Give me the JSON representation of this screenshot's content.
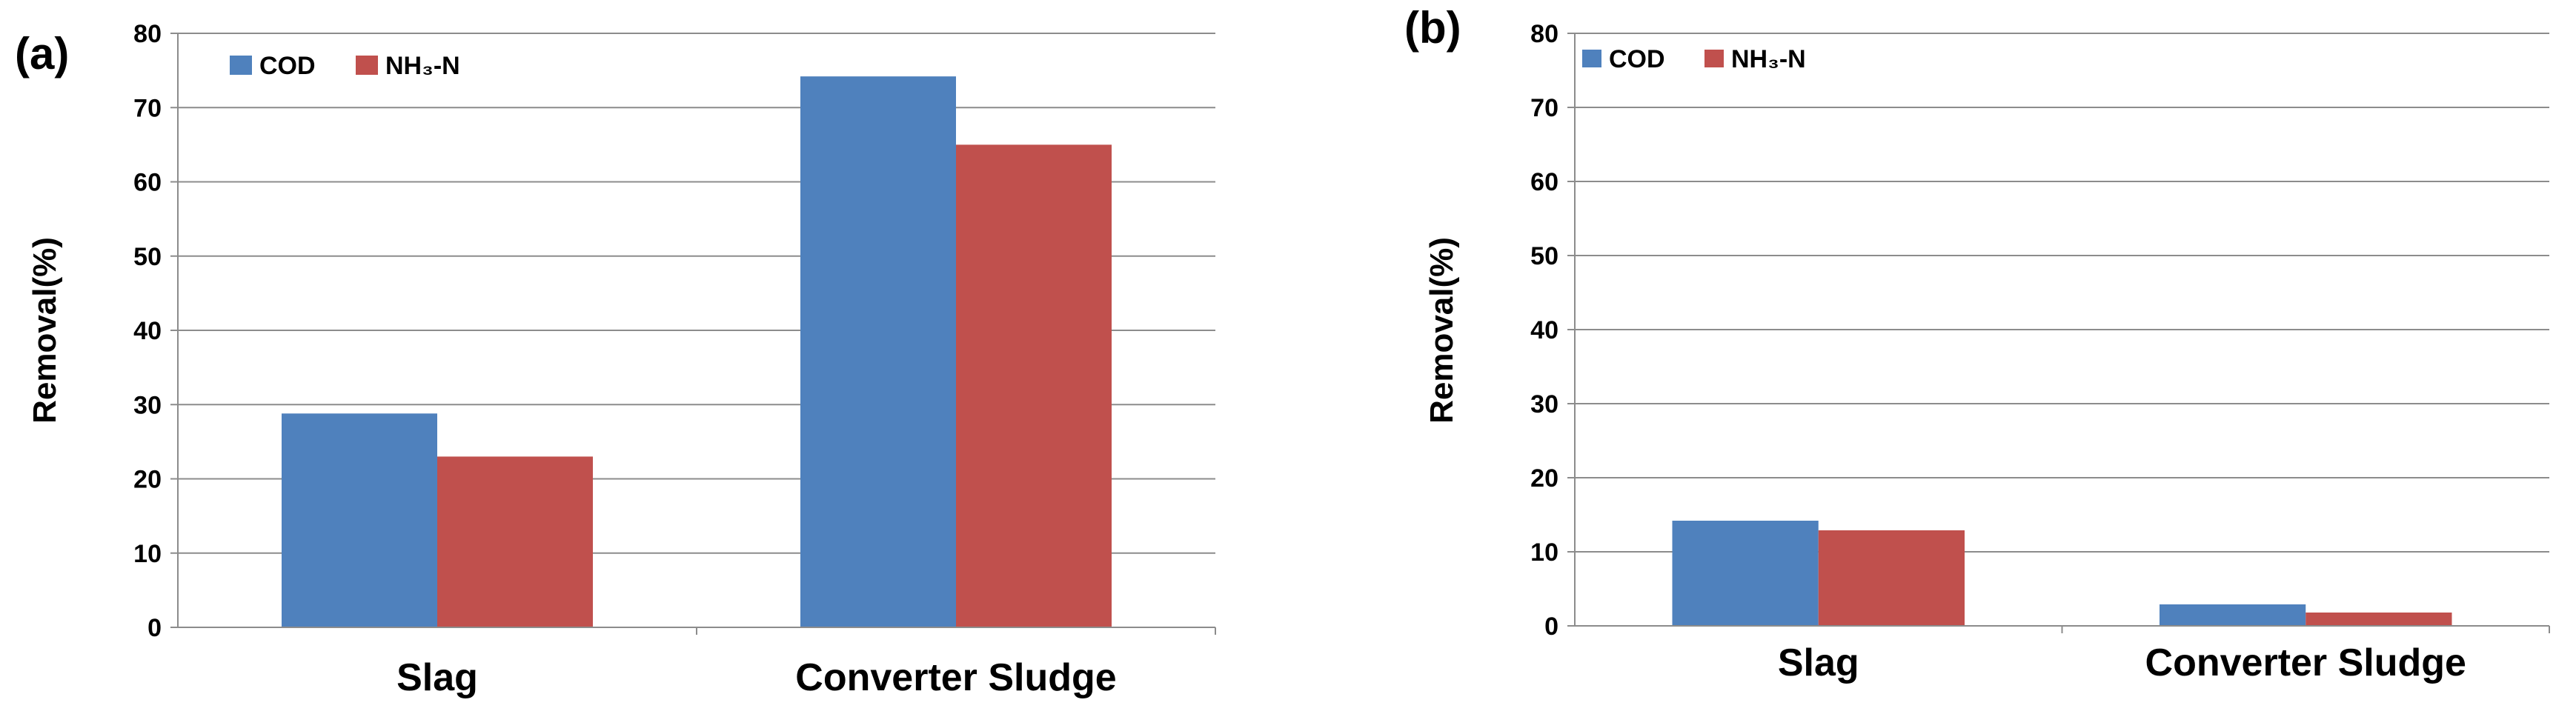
{
  "chart_data": [
    {
      "panel": "(a)",
      "type": "bar",
      "ylabel": "Removal(%)",
      "xlabel": "",
      "ylim": [
        0,
        80
      ],
      "yticks": [
        "0",
        "10",
        "20",
        "30",
        "40",
        "50",
        "60",
        "70",
        "80"
      ],
      "grid": true,
      "legend_position": "top-left",
      "categories": [
        "Slag",
        "Converter Sludge"
      ],
      "series": [
        {
          "name": "COD",
          "legend_label": "COD",
          "color": "#4f81bd",
          "values": [
            28.8,
            74.2
          ]
        },
        {
          "name": "NH3-N",
          "legend_label": "NH₃-N",
          "color": "#c0504d",
          "values": [
            23.0,
            65.0
          ]
        }
      ]
    },
    {
      "panel": "(b)",
      "type": "bar",
      "ylabel": "Removal(%)",
      "xlabel": "",
      "ylim": [
        0,
        80
      ],
      "yticks": [
        "0",
        "10",
        "20",
        "30",
        "40",
        "50",
        "60",
        "70",
        "80"
      ],
      "grid": true,
      "legend_position": "top-left",
      "categories": [
        "Slag",
        "Converter Sludge"
      ],
      "series": [
        {
          "name": "COD",
          "legend_label": "COD",
          "color": "#4f81bd",
          "values": [
            14.2,
            2.9
          ]
        },
        {
          "name": "NH3-N",
          "legend_label": "NH₃-N",
          "color": "#c0504d",
          "values": [
            12.9,
            1.8
          ]
        }
      ]
    }
  ]
}
